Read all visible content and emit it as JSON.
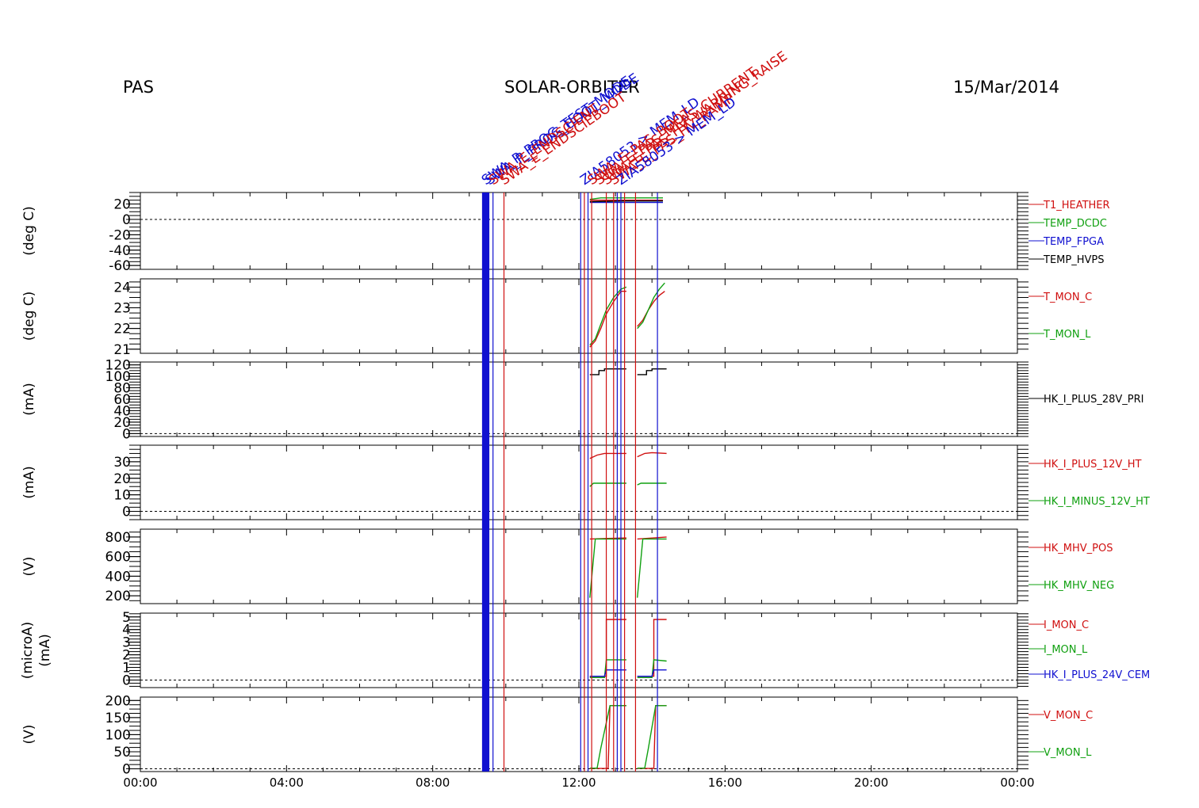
{
  "header": {
    "left": "PAS",
    "center": "SOLAR-ORBITER",
    "right": "15/Mar/2014"
  },
  "colors": {
    "red": "#d01010",
    "green": "#10a010",
    "blue": "#1010d0",
    "black": "#000000"
  },
  "chart_data": {
    "type": "line",
    "title": "SOLAR-ORBITER",
    "date": "15/Mar/2014",
    "x_unit": "hours (UT)",
    "xlim": [
      0,
      24
    ],
    "x_ticks": [
      0,
      4,
      8,
      12,
      16,
      20,
      24
    ],
    "x_tick_labels": [
      "00:00",
      "04:00",
      "08:00",
      "12:00",
      "16:00",
      "20:00",
      "00:00"
    ],
    "events": {
      "blue_block": [
        9.35,
        9.55
      ],
      "blue_lines": [
        9.65,
        12.05,
        12.25,
        13.05,
        13.15,
        14.15
      ],
      "red_lines": [
        9.95,
        12.15,
        12.35,
        12.75,
        12.95,
        13.25,
        13.55
      ]
    },
    "event_labels": [
      {
        "text": "SWA_P_PROG_TEST_MODE",
        "x": 9.45,
        "color": "blue"
      },
      {
        "text": "SWA_P_PROG_BOOT_MODE",
        "x": 9.55,
        "color": "blue"
      },
      {
        "text": "SWA_E_ENDSCIENT",
        "x": 9.65,
        "color": "red"
      },
      {
        "text": "SWA_E_ENDSCIEBOOT",
        "x": 9.95,
        "color": "red"
      },
      {
        "text": "ZIA58053 > MEM_LD",
        "x": 12.15,
        "color": "blue"
      },
      {
        "text": "SWA_E_PAS_BOOT",
        "x": 12.35,
        "color": "red"
      },
      {
        "text": "SWA_E_PAS_MEAS_CURRENT",
        "x": 12.55,
        "color": "red"
      },
      {
        "text": "SWA_E_PAS_HV_WARNING_RAISE",
        "x": 12.75,
        "color": "red"
      },
      {
        "text": "SWA_E_PAS_HV_RAMP",
        "x": 12.95,
        "color": "red"
      },
      {
        "text": "ZIA58053 > MEM_LD",
        "x": 13.15,
        "color": "blue"
      }
    ],
    "panels": [
      {
        "ylabel": "(deg C)",
        "ylim": [
          -65,
          35
        ],
        "ticks": [
          20,
          0,
          -20,
          -40,
          -60
        ],
        "zero": true,
        "series": [
          {
            "name": "T1_HEATHER",
            "color": "red",
            "points": [
              [
                12.3,
                25
              ],
              [
                12.8,
                25
              ],
              [
                13.3,
                25
              ],
              [
                13.6,
                25
              ],
              [
                14.3,
                25
              ]
            ]
          },
          {
            "name": "TEMP_DCDC",
            "color": "green",
            "points": [
              [
                12.3,
                26
              ],
              [
                12.6,
                28
              ],
              [
                13.3,
                28
              ],
              [
                13.6,
                28
              ],
              [
                14.3,
                28
              ]
            ]
          },
          {
            "name": "TEMP_FPGA",
            "color": "blue",
            "points": [
              [
                12.3,
                22
              ],
              [
                13.3,
                22
              ],
              [
                13.6,
                22
              ],
              [
                14.3,
                22
              ]
            ]
          },
          {
            "name": "TEMP_HVPS",
            "color": "black",
            "points": [
              [
                12.3,
                23
              ],
              [
                13.3,
                24
              ],
              [
                13.6,
                24
              ],
              [
                14.3,
                24
              ]
            ]
          }
        ]
      },
      {
        "ylabel": "(deg C)",
        "ylim": [
          20.8,
          24.4
        ],
        "ticks": [
          24,
          23,
          22,
          21
        ],
        "zero": false,
        "series": [
          {
            "name": "T_MON_C",
            "color": "red",
            "points": [
              [
                12.3,
                21.1
              ],
              [
                12.45,
                21.4
              ],
              [
                12.6,
                22.0
              ],
              [
                12.75,
                22.7
              ],
              [
                12.95,
                23.3
              ],
              [
                13.15,
                23.8
              ],
              [
                13.3,
                23.8
              ],
              null,
              [
                13.6,
                22.1
              ],
              [
                13.75,
                22.4
              ],
              [
                13.9,
                22.9
              ],
              [
                14.05,
                23.3
              ],
              [
                14.2,
                23.6
              ],
              [
                14.35,
                23.8
              ]
            ]
          },
          {
            "name": "T_MON_L",
            "color": "green",
            "points": [
              [
                12.3,
                21.2
              ],
              [
                12.45,
                21.5
              ],
              [
                12.6,
                22.2
              ],
              [
                12.75,
                22.9
              ],
              [
                12.95,
                23.5
              ],
              [
                13.15,
                23.9
              ],
              [
                13.3,
                24.0
              ],
              null,
              [
                13.6,
                22.0
              ],
              [
                13.75,
                22.3
              ],
              [
                13.9,
                22.9
              ],
              [
                14.05,
                23.5
              ],
              [
                14.2,
                23.9
              ],
              [
                14.35,
                24.2
              ]
            ]
          }
        ]
      },
      {
        "ylabel": "(mA)",
        "ylim": [
          -5,
          125
        ],
        "ticks": [
          120,
          100,
          80,
          60,
          40,
          20,
          0
        ],
        "zero": true,
        "series": [
          {
            "name": "HK_I_PLUS_28V_PRI",
            "color": "black",
            "points": [
              [
                12.3,
                103
              ],
              [
                12.55,
                103
              ],
              [
                12.55,
                110
              ],
              [
                12.7,
                110
              ],
              [
                12.7,
                113
              ],
              [
                13.3,
                113
              ],
              null,
              [
                13.6,
                103
              ],
              [
                13.85,
                103
              ],
              [
                13.85,
                110
              ],
              [
                14.0,
                110
              ],
              [
                14.0,
                113
              ],
              [
                14.4,
                113
              ]
            ]
          }
        ]
      },
      {
        "ylabel": "(mA)",
        "ylim": [
          -5,
          40
        ],
        "ticks": [
          30,
          20,
          10,
          0
        ],
        "zero": true,
        "series": [
          {
            "name": "HK_I_PLUS_12V_HT",
            "color": "red",
            "points": [
              [
                12.3,
                32
              ],
              [
                12.5,
                34
              ],
              [
                12.7,
                35
              ],
              [
                13.3,
                35
              ],
              null,
              [
                13.6,
                33
              ],
              [
                13.8,
                35
              ],
              [
                14.0,
                35.5
              ],
              [
                14.4,
                35
              ]
            ]
          },
          {
            "name": "HK_I_MINUS_12V_HT",
            "color": "green",
            "points": [
              [
                12.3,
                15
              ],
              [
                12.4,
                17
              ],
              [
                13.3,
                17
              ],
              null,
              [
                13.6,
                16
              ],
              [
                13.7,
                17
              ],
              [
                14.4,
                17
              ]
            ]
          }
        ]
      },
      {
        "ylabel": "(V)",
        "ylim": [
          120,
          880
        ],
        "ticks": [
          800,
          600,
          400,
          200
        ],
        "zero": false,
        "series": [
          {
            "name": "HK_MHV_POS",
            "color": "red",
            "points": [
              [
                12.3,
                780
              ],
              [
                13.3,
                790
              ],
              null,
              [
                13.6,
                780
              ],
              [
                14.4,
                800
              ]
            ]
          },
          {
            "name": "HK_MHV_NEG",
            "color": "green",
            "points": [
              [
                12.3,
                180
              ],
              [
                12.45,
                780
              ],
              [
                13.3,
                780
              ],
              null,
              [
                13.6,
                180
              ],
              [
                13.75,
                780
              ],
              [
                14.4,
                780
              ]
            ]
          }
        ]
      },
      {
        "ylabel": "(microA)",
        "ylabel2": "(mA)",
        "ylim": [
          -0.6,
          5.3
        ],
        "ticks": [
          5,
          4,
          3,
          2,
          1,
          0
        ],
        "zero": true,
        "series": [
          {
            "name": "I_MON_C",
            "color": "red",
            "points": [
              [
                12.3,
                0.3
              ],
              [
                12.75,
                0.3
              ],
              [
                12.75,
                4.8
              ],
              [
                13.3,
                4.8
              ],
              null,
              [
                13.6,
                0.3
              ],
              [
                14.05,
                0.3
              ],
              [
                14.05,
                4.8
              ],
              [
                14.4,
                4.8
              ]
            ]
          },
          {
            "name": "I_MON_L",
            "color": "green",
            "points": [
              [
                12.3,
                0.2
              ],
              [
                12.7,
                0.2
              ],
              [
                12.75,
                1.6
              ],
              [
                13.3,
                1.6
              ],
              null,
              [
                13.6,
                0.2
              ],
              [
                14.0,
                0.2
              ],
              [
                14.05,
                1.6
              ],
              [
                14.4,
                1.5
              ]
            ]
          },
          {
            "name": "HK_I_PLUS_24V_CEM",
            "color": "blue",
            "points": [
              [
                12.3,
                0.3
              ],
              [
                12.7,
                0.3
              ],
              [
                12.75,
                0.8
              ],
              [
                13.3,
                0.8
              ],
              null,
              [
                13.6,
                0.3
              ],
              [
                14.0,
                0.3
              ],
              [
                14.05,
                0.8
              ],
              [
                14.4,
                0.8
              ]
            ]
          }
        ]
      },
      {
        "ylabel": "(V)",
        "ylim": [
          -8,
          210
        ],
        "ticks": [
          200,
          150,
          100,
          50,
          0
        ],
        "zero": true,
        "series": [
          {
            "name": "V_MON_C",
            "color": "red",
            "points": [
              [
                12.3,
                1
              ],
              [
                12.8,
                1
              ],
              [
                12.85,
                185
              ],
              [
                13.3,
                185
              ],
              null,
              [
                13.6,
                1
              ],
              [
                14.05,
                1
              ],
              [
                14.1,
                185
              ],
              [
                14.4,
                185
              ]
            ]
          },
          {
            "name": "V_MON_L",
            "color": "green",
            "points": [
              [
                12.3,
                2
              ],
              [
                12.5,
                2
              ],
              [
                12.6,
                60
              ],
              [
                12.85,
                185
              ],
              [
                13.3,
                185
              ],
              null,
              [
                13.6,
                2
              ],
              [
                13.8,
                2
              ],
              [
                13.9,
                60
              ],
              [
                14.1,
                185
              ],
              [
                14.4,
                185
              ]
            ]
          }
        ]
      }
    ]
  }
}
